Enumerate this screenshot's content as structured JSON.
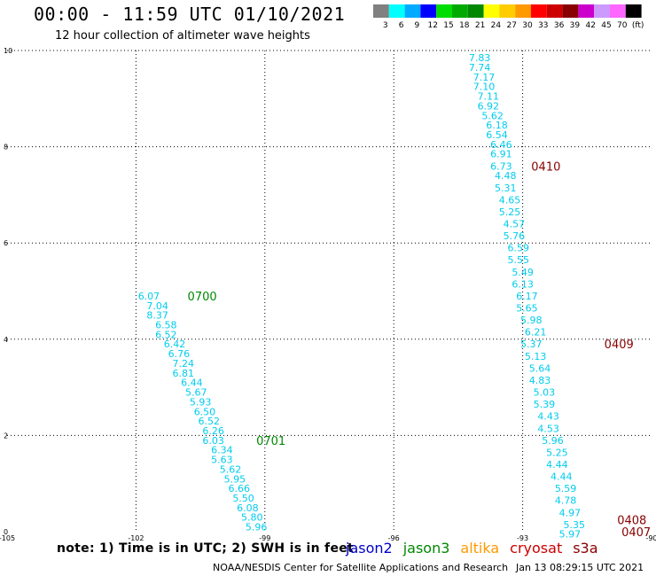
{
  "header": {
    "title": "00:00 - 11:59 UTC 01/10/2021",
    "subtitle": "12 hour collection of altimeter wave heights"
  },
  "colorbar": {
    "labels": [
      "3",
      "6",
      "9",
      "12",
      "15",
      "18",
      "21",
      "24",
      "27",
      "30",
      "33",
      "36",
      "39",
      "42",
      "45",
      "70",
      "(ft)"
    ],
    "colors": [
      "#808080",
      "#00ffff",
      "#00aaff",
      "#0000ff",
      "#00dd00",
      "#00aa00",
      "#008800",
      "#ffff00",
      "#ffcc00",
      "#ff9900",
      "#ff0000",
      "#cc0000",
      "#880000",
      "#cc00cc",
      "#cc99ff",
      "#ff66ff",
      "#000000"
    ]
  },
  "axes": {
    "x_ticks": [
      "-105",
      "-102",
      "-99",
      "-96",
      "-93",
      "-90"
    ],
    "y_ticks": [
      "0",
      "2",
      "4",
      "6",
      "8",
      "10"
    ]
  },
  "chart_data": {
    "type": "scatter",
    "xlim": [
      -105,
      -90
    ],
    "ylim": [
      0,
      10
    ],
    "grid": true,
    "series": [
      {
        "name": "jason3",
        "color": "#00ccee",
        "points": [
          {
            "x": -101.7,
            "y": 4.9,
            "label": "6.07"
          },
          {
            "x": -101.5,
            "y": 4.7,
            "label": "7.04"
          },
          {
            "x": -101.5,
            "y": 4.5,
            "label": "8.37"
          },
          {
            "x": -101.3,
            "y": 4.3,
            "label": "6.58"
          },
          {
            "x": -101.3,
            "y": 4.1,
            "label": "6.52"
          },
          {
            "x": -101.1,
            "y": 3.9,
            "label": "6.42"
          },
          {
            "x": -101.0,
            "y": 3.7,
            "label": "6.76"
          },
          {
            "x": -100.9,
            "y": 3.5,
            "label": "7.24"
          },
          {
            "x": -100.9,
            "y": 3.3,
            "label": "6.81"
          },
          {
            "x": -100.7,
            "y": 3.1,
            "label": "6.44"
          },
          {
            "x": -100.6,
            "y": 2.9,
            "label": "5.67"
          },
          {
            "x": -100.5,
            "y": 2.7,
            "label": "5.93"
          },
          {
            "x": -100.4,
            "y": 2.5,
            "label": "6.50"
          },
          {
            "x": -100.3,
            "y": 2.3,
            "label": "6.52"
          },
          {
            "x": -100.2,
            "y": 2.1,
            "label": "6.26"
          },
          {
            "x": -100.2,
            "y": 1.9,
            "label": "6.03"
          },
          {
            "x": -100.0,
            "y": 1.7,
            "label": "6.34"
          },
          {
            "x": -100.0,
            "y": 1.5,
            "label": "5.63"
          },
          {
            "x": -99.8,
            "y": 1.3,
            "label": "5.62"
          },
          {
            "x": -99.7,
            "y": 1.1,
            "label": "5.95"
          },
          {
            "x": -99.6,
            "y": 0.9,
            "label": "6.66"
          },
          {
            "x": -99.5,
            "y": 0.7,
            "label": "5.50"
          },
          {
            "x": -99.4,
            "y": 0.5,
            "label": "6.08"
          },
          {
            "x": -99.3,
            "y": 0.3,
            "label": "5.80"
          },
          {
            "x": -99.2,
            "y": 0.1,
            "label": "5.96"
          }
        ]
      },
      {
        "name": "cryosat",
        "color": "#00ccee",
        "points": [
          {
            "x": -94.0,
            "y": 9.85,
            "label": "7.83"
          },
          {
            "x": -94.0,
            "y": 9.65,
            "label": "7.74"
          },
          {
            "x": -93.9,
            "y": 9.45,
            "label": "7.17"
          },
          {
            "x": -93.9,
            "y": 9.25,
            "label": "7.10"
          },
          {
            "x": -93.8,
            "y": 9.05,
            "label": "7.11"
          },
          {
            "x": -93.8,
            "y": 8.85,
            "label": "6.92"
          },
          {
            "x": -93.7,
            "y": 8.65,
            "label": "5.62"
          },
          {
            "x": -93.6,
            "y": 8.45,
            "label": "6.18"
          },
          {
            "x": -93.6,
            "y": 8.25,
            "label": "6.54"
          },
          {
            "x": -93.5,
            "y": 8.05,
            "label": "6.46"
          },
          {
            "x": -93.5,
            "y": 7.85,
            "label": "6.91"
          },
          {
            "x": -93.5,
            "y": 7.6,
            "label": "6.73"
          },
          {
            "x": -93.4,
            "y": 7.4,
            "label": "4.48"
          },
          {
            "x": -93.4,
            "y": 7.15,
            "label": "5.31"
          },
          {
            "x": -93.3,
            "y": 6.9,
            "label": "4.65"
          },
          {
            "x": -93.3,
            "y": 6.65,
            "label": "5.25"
          },
          {
            "x": -93.2,
            "y": 6.4,
            "label": "4.57"
          },
          {
            "x": -93.2,
            "y": 6.15,
            "label": "5.76"
          },
          {
            "x": -93.1,
            "y": 5.9,
            "label": "6.59"
          },
          {
            "x": -93.1,
            "y": 5.65,
            "label": "5.55"
          },
          {
            "x": -93.0,
            "y": 5.4,
            "label": "5.49"
          },
          {
            "x": -93.0,
            "y": 5.15,
            "label": "6.13"
          },
          {
            "x": -92.9,
            "y": 4.9,
            "label": "6.17"
          },
          {
            "x": -92.9,
            "y": 4.65,
            "label": "5.65"
          },
          {
            "x": -92.8,
            "y": 4.4,
            "label": "5.98"
          },
          {
            "x": -92.7,
            "y": 4.15,
            "label": "6.21"
          },
          {
            "x": -92.8,
            "y": 3.9,
            "label": "5.37"
          },
          {
            "x": -92.7,
            "y": 3.65,
            "label": "5.13"
          },
          {
            "x": -92.6,
            "y": 3.4,
            "label": "5.64"
          },
          {
            "x": -92.6,
            "y": 3.15,
            "label": "4.83"
          },
          {
            "x": -92.5,
            "y": 2.9,
            "label": "5.03"
          },
          {
            "x": -92.5,
            "y": 2.65,
            "label": "5.39"
          },
          {
            "x": -92.4,
            "y": 2.4,
            "label": "4.43"
          },
          {
            "x": -92.4,
            "y": 2.15,
            "label": "4.53"
          },
          {
            "x": -92.3,
            "y": 1.9,
            "label": "5.96"
          },
          {
            "x": -92.2,
            "y": 1.65,
            "label": "5.25"
          },
          {
            "x": -92.2,
            "y": 1.4,
            "label": "4.44"
          },
          {
            "x": -92.1,
            "y": 1.15,
            "label": "4.44"
          },
          {
            "x": -92.0,
            "y": 0.9,
            "label": "5.59"
          },
          {
            "x": -92.0,
            "y": 0.65,
            "label": "4.78"
          },
          {
            "x": -91.9,
            "y": 0.4,
            "label": "4.97"
          },
          {
            "x": -91.8,
            "y": 0.15,
            "label": "5.35"
          },
          {
            "x": -91.9,
            "y": -0.05,
            "label": "5.97"
          }
        ]
      }
    ],
    "time_labels": [
      {
        "text": "0700",
        "x": -100.8,
        "y": 4.9,
        "color": "#008800"
      },
      {
        "text": "0701",
        "x": -99.2,
        "y": 1.9,
        "color": "#008800"
      },
      {
        "text": "0410",
        "x": -92.8,
        "y": 7.6,
        "color": "#880000"
      },
      {
        "text": "0409",
        "x": -91.1,
        "y": 3.9,
        "color": "#880000"
      },
      {
        "text": "0408",
        "x": -90.8,
        "y": 0.25,
        "color": "#880000"
      },
      {
        "text": "0407",
        "x": -90.7,
        "y": 0.0,
        "color": "#880000"
      }
    ]
  },
  "footer": {
    "note": "note: 1) Time is in UTC; 2) SWH is in feet",
    "legend": [
      {
        "name": "jason2",
        "color": "#0000cc"
      },
      {
        "name": "jason3",
        "color": "#008800"
      },
      {
        "name": "altika",
        "color": "#ff9900"
      },
      {
        "name": "cryosat",
        "color": "#cc0000"
      },
      {
        "name": "s3a",
        "color": "#880000"
      }
    ],
    "credit": "NOAA/NESDIS Center for Satellite Applications and Research",
    "stamp": "Jan 13 08:29:15 UTC 2021"
  }
}
